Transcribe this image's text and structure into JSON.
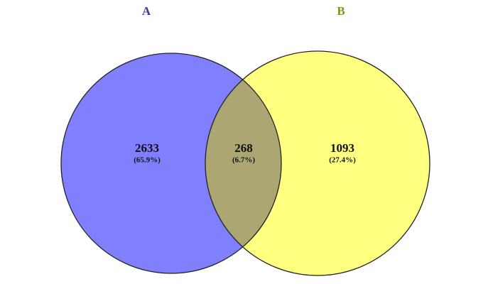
{
  "chart_data": {
    "type": "venn",
    "sets": [
      {
        "name": "A",
        "color": "#8080ff",
        "label_color": "#3a3aa8"
      },
      {
        "name": "B",
        "color": "#ffff80",
        "label_color": "#8a8a2a"
      }
    ],
    "overlap_color": "#aba672",
    "values": [
      2633,
      268,
      1093
    ],
    "percents": [
      65.9,
      6.7,
      27.4
    ],
    "percent_labels": [
      "(65.9%)",
      "(6.7%)",
      "(27.4%)"
    ]
  }
}
